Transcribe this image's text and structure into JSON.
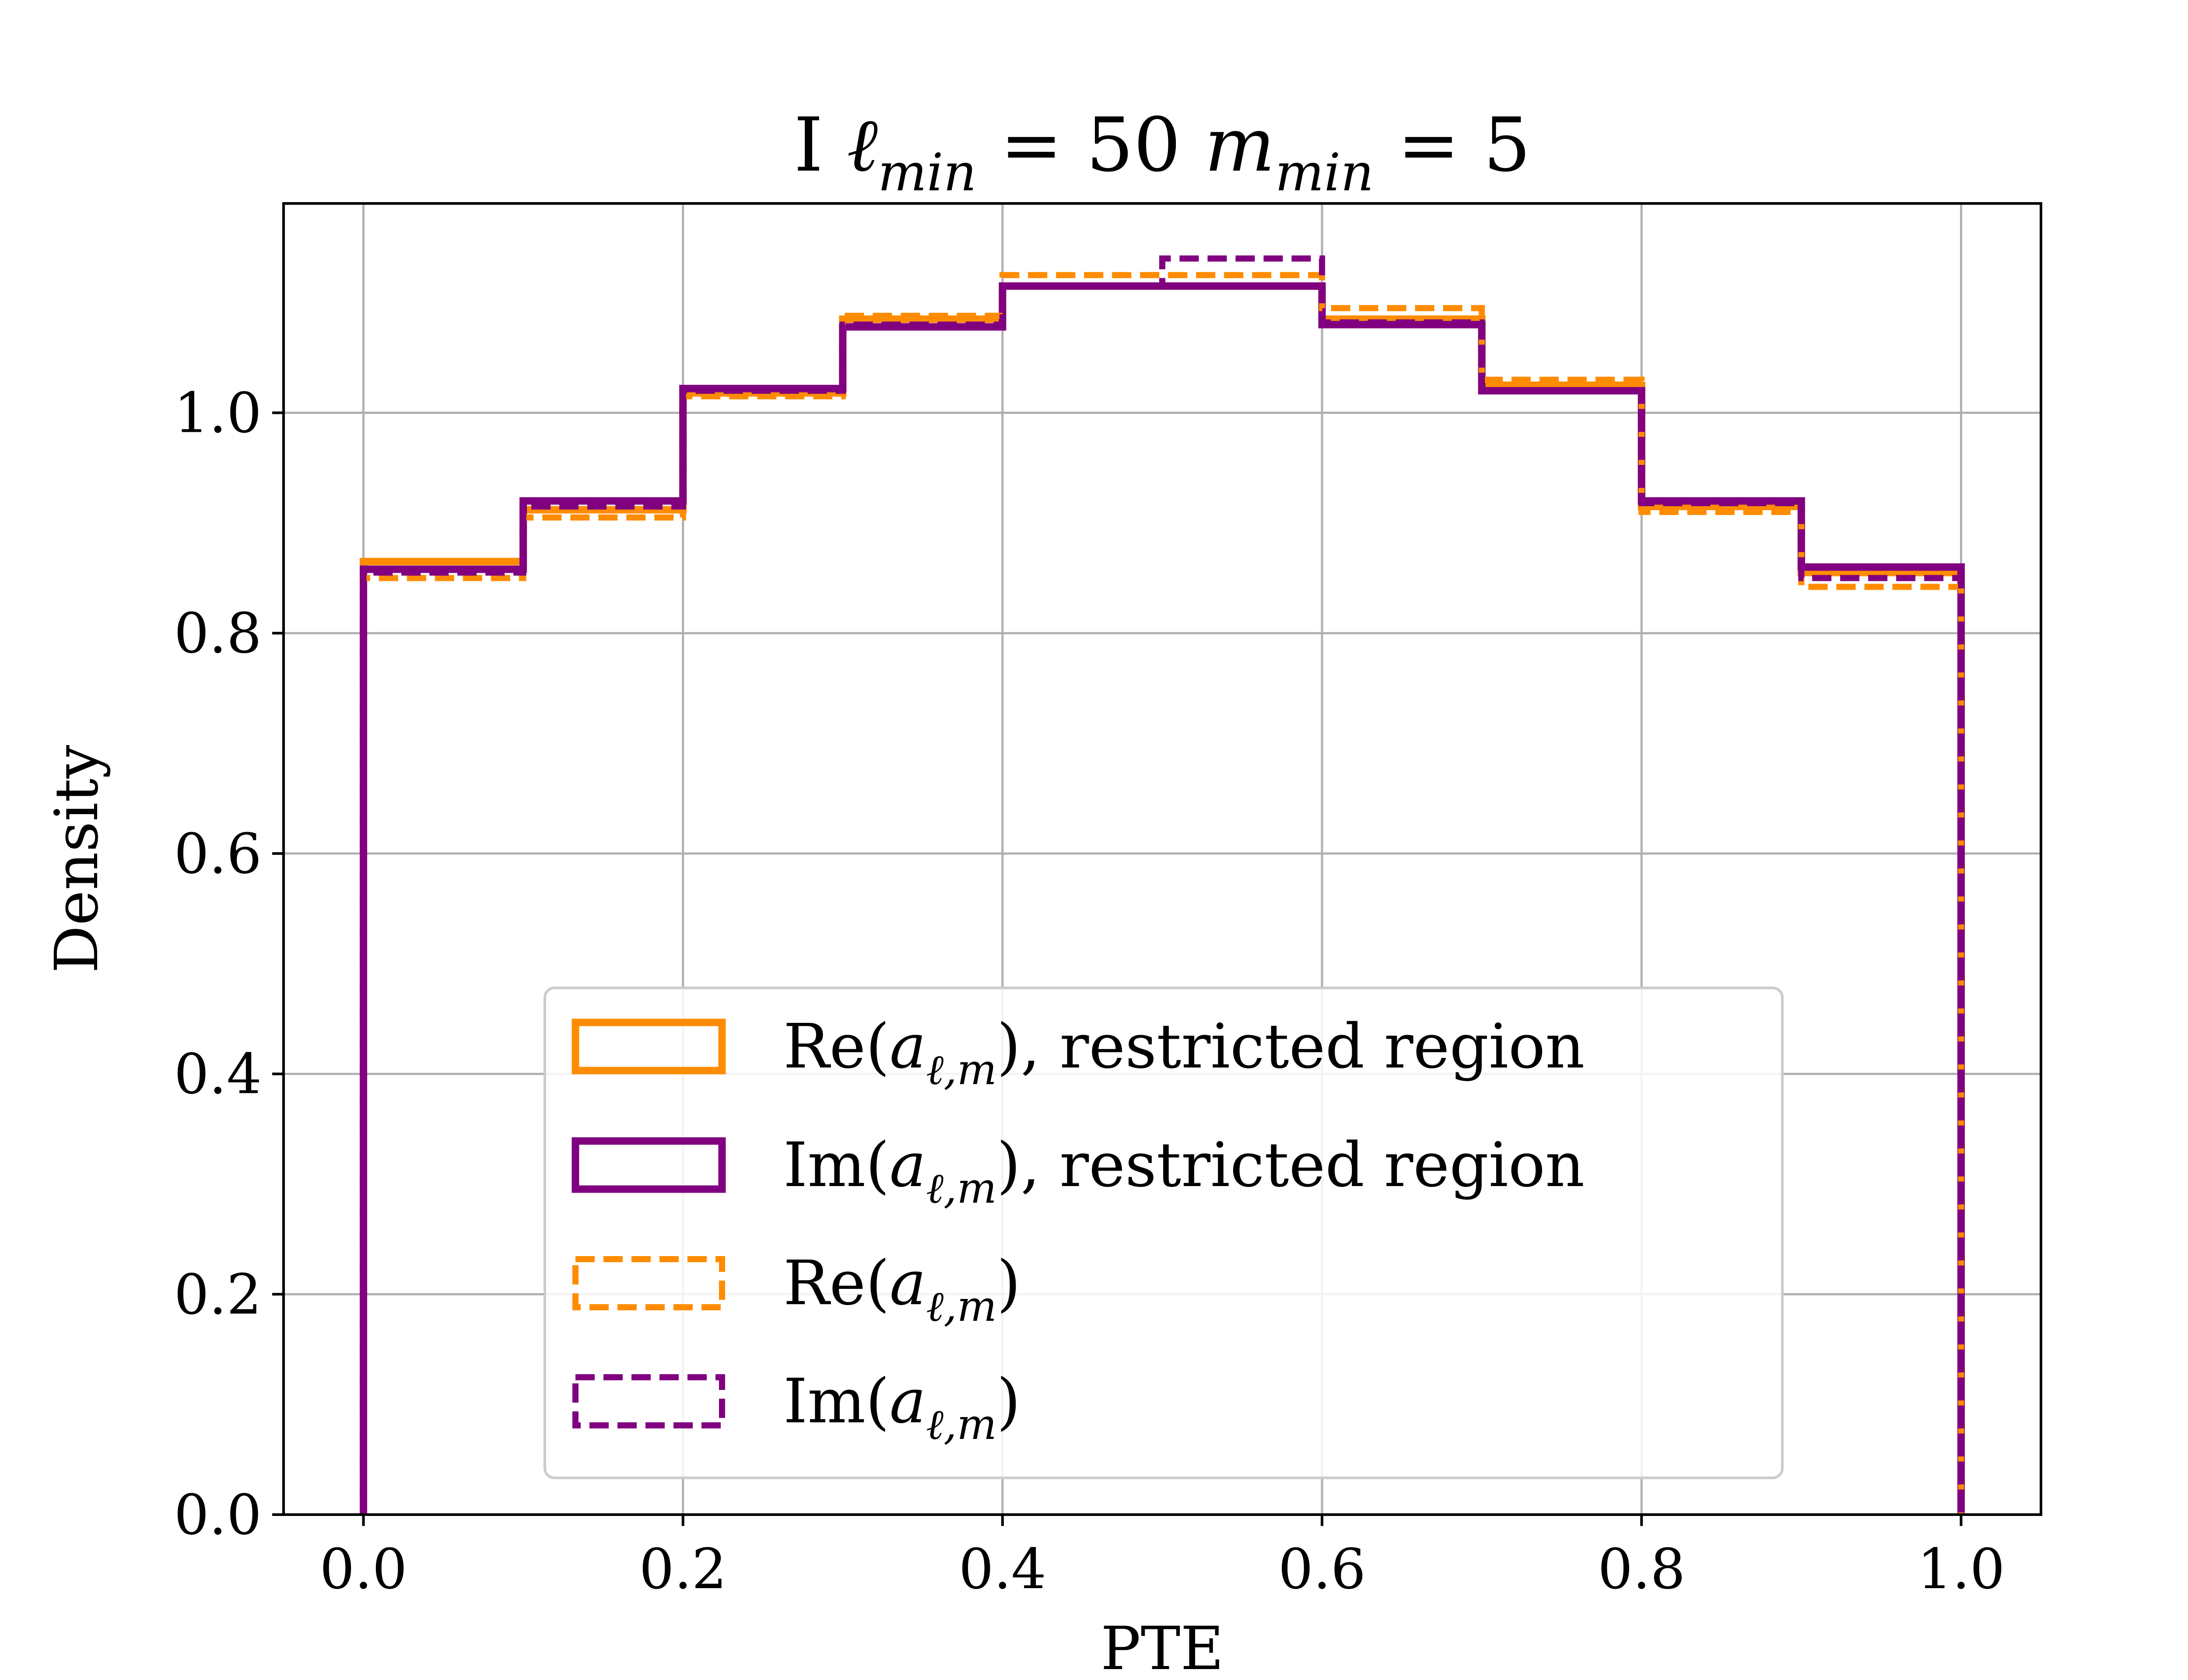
{
  "chart_data": {
    "type": "histogram",
    "title": "I ℓ_min = 50  m_min = 5",
    "title_parts": [
      "I ",
      "ℓ",
      "min",
      " = 50  ",
      "m",
      "min",
      " = 5"
    ],
    "xlabel": "PTE",
    "ylabel": "Density",
    "xlim": [
      -0.05,
      1.05
    ],
    "ylim": [
      0.0,
      1.19
    ],
    "xticks": [
      0.0,
      0.2,
      0.4,
      0.6,
      0.8,
      1.0
    ],
    "xtick_labels": [
      "0.0",
      "0.2",
      "0.4",
      "0.6",
      "0.8",
      "1.0"
    ],
    "yticks": [
      0.0,
      0.2,
      0.4,
      0.6,
      0.8,
      1.0
    ],
    "ytick_labels": [
      "0.0",
      "0.2",
      "0.4",
      "0.6",
      "0.8",
      "1.0"
    ],
    "grid": true,
    "legend_position": "lower-center",
    "bin_edges": [
      0.0,
      0.1,
      0.2,
      0.3,
      0.4,
      0.5,
      0.6,
      0.7,
      0.8,
      0.9,
      1.0
    ],
    "series": [
      {
        "name": "Re(a_ℓ,m), restricted region",
        "label_parts": [
          "Re(",
          "a",
          "ℓ,m",
          "), restricted region"
        ],
        "color": "#ff8c00",
        "style": "solid",
        "values": [
          0.865,
          0.912,
          1.018,
          1.085,
          1.115,
          1.115,
          1.085,
          1.025,
          0.915,
          0.855
        ]
      },
      {
        "name": "Im(a_ℓ,m), restricted region",
        "label_parts": [
          "Im(",
          "a",
          "ℓ,m",
          "), restricted region"
        ],
        "color": "#800080",
        "style": "solid",
        "values": [
          0.858,
          0.92,
          1.022,
          1.078,
          1.115,
          1.115,
          1.08,
          1.02,
          0.92,
          0.86
        ]
      },
      {
        "name": "Re(a_ℓ,m)",
        "label_parts": [
          "Re(",
          "a",
          "ℓ,m",
          ")"
        ],
        "color": "#ff8c00",
        "style": "dashed",
        "values": [
          0.85,
          0.905,
          1.015,
          1.088,
          1.125,
          1.125,
          1.095,
          1.03,
          0.91,
          0.842
        ]
      },
      {
        "name": "Im(a_ℓ,m)",
        "label_parts": [
          "Im(",
          "a",
          "ℓ,m",
          ")"
        ],
        "color": "#800080",
        "style": "dashed",
        "values": [
          0.855,
          0.915,
          1.02,
          1.08,
          1.115,
          1.14,
          1.082,
          1.02,
          0.918,
          0.85
        ]
      }
    ]
  }
}
